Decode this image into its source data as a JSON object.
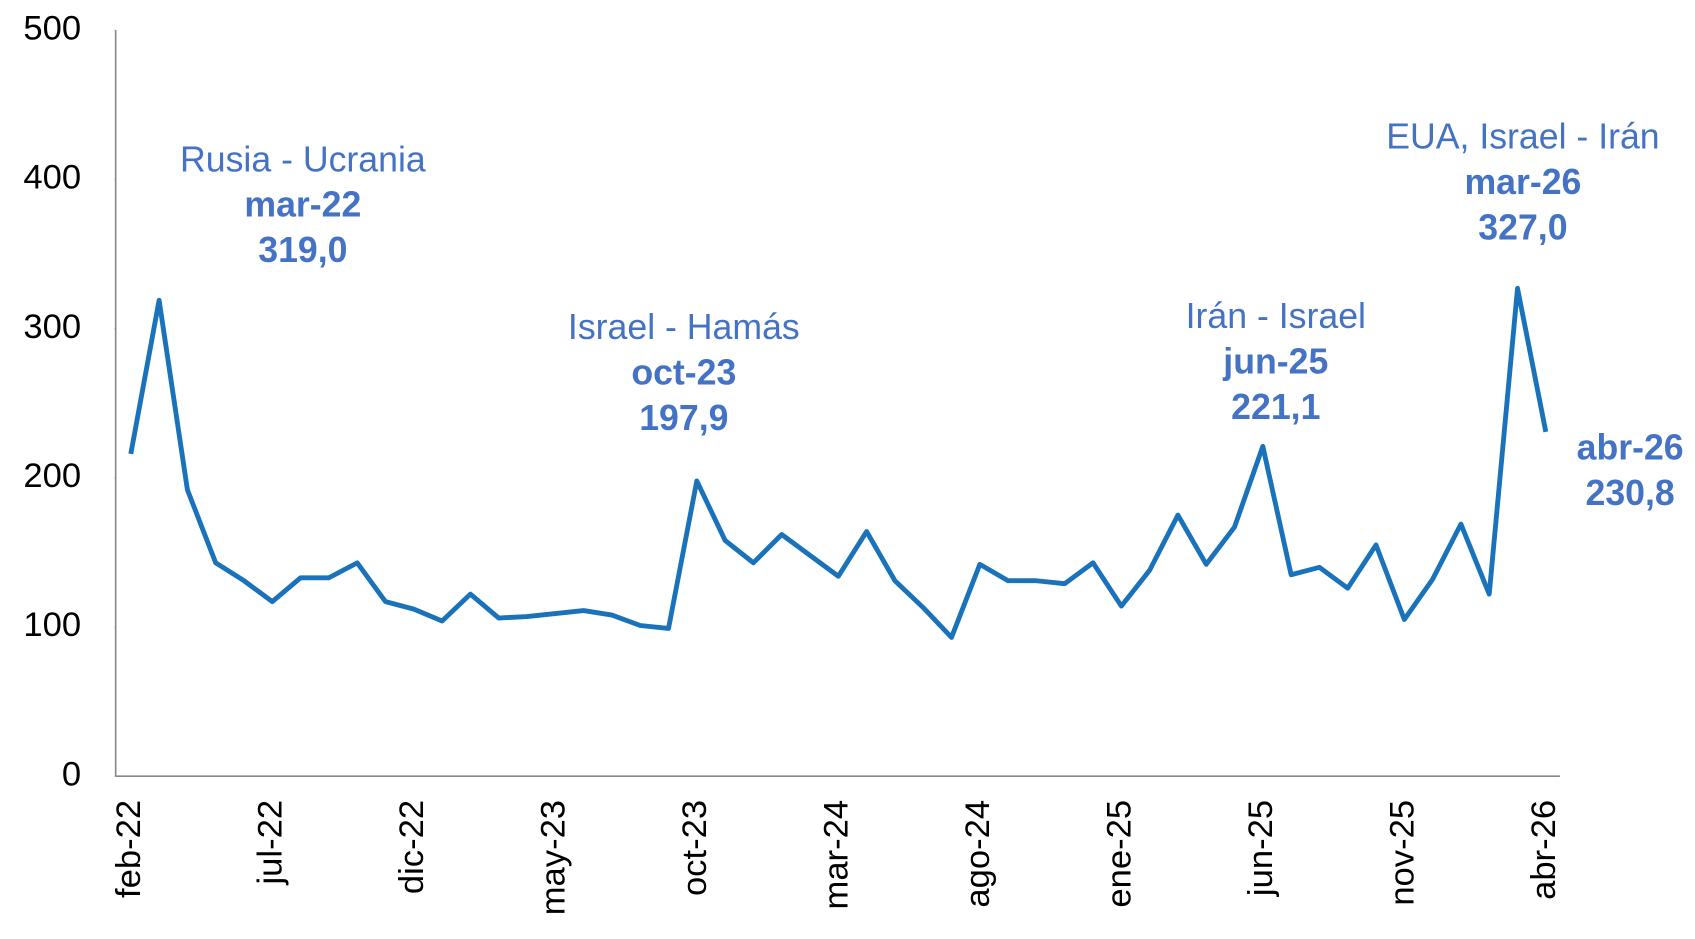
{
  "chart_data": {
    "type": "line",
    "categories": [
      "feb-22",
      null,
      null,
      null,
      null,
      "jul-22",
      null,
      null,
      null,
      null,
      "dic-22",
      null,
      null,
      null,
      null,
      "may-23",
      null,
      null,
      null,
      null,
      "oct-23",
      null,
      null,
      null,
      null,
      "mar-24",
      null,
      null,
      null,
      null,
      "ago-24",
      null,
      null,
      null,
      null,
      "ene-25",
      null,
      null,
      null,
      null,
      "jun-25",
      null,
      null,
      null,
      null,
      "nov-25",
      null,
      null,
      null,
      null,
      "abr-26"
    ],
    "values": [
      216,
      319.0,
      192,
      143,
      131,
      117,
      133,
      133,
      143,
      117,
      112,
      104,
      122,
      106,
      107,
      109,
      111,
      108,
      101,
      99,
      197.9,
      158,
      143,
      162,
      148,
      134,
      164,
      131,
      113,
      93,
      142,
      131,
      131,
      129,
      143,
      114,
      138,
      175,
      142,
      167,
      221.1,
      135,
      140,
      126,
      155,
      105,
      132,
      169,
      122,
      327.0,
      230.8
    ],
    "value_labels": [
      null,
      "319,0",
      null,
      null,
      null,
      null,
      null,
      null,
      null,
      null,
      null,
      null,
      null,
      null,
      null,
      null,
      null,
      null,
      null,
      null,
      "197,9",
      null,
      null,
      null,
      null,
      null,
      null,
      null,
      null,
      null,
      null,
      null,
      null,
      null,
      null,
      null,
      null,
      null,
      null,
      null,
      "221,1",
      null,
      null,
      null,
      null,
      null,
      null,
      null,
      null,
      "327,0",
      "230,8"
    ],
    "annotations": [
      {
        "title": "Rusia - Ucrania",
        "date": "mar-22"
      },
      {
        "title": "Israel - Hamás",
        "date": "oct-23"
      },
      {
        "title": "Irán - Israel",
        "date": "jun-25"
      },
      {
        "title": "EUA, Israel - Irán",
        "date": "mar-26"
      },
      {
        "date": "abr-26"
      }
    ],
    "color": "#1a73ba",
    "annotation_color": "#4472c4",
    "ylim": [
      0,
      500
    ],
    "yticks": [
      0,
      100,
      200,
      300,
      400,
      500
    ],
    "grid": false
  }
}
